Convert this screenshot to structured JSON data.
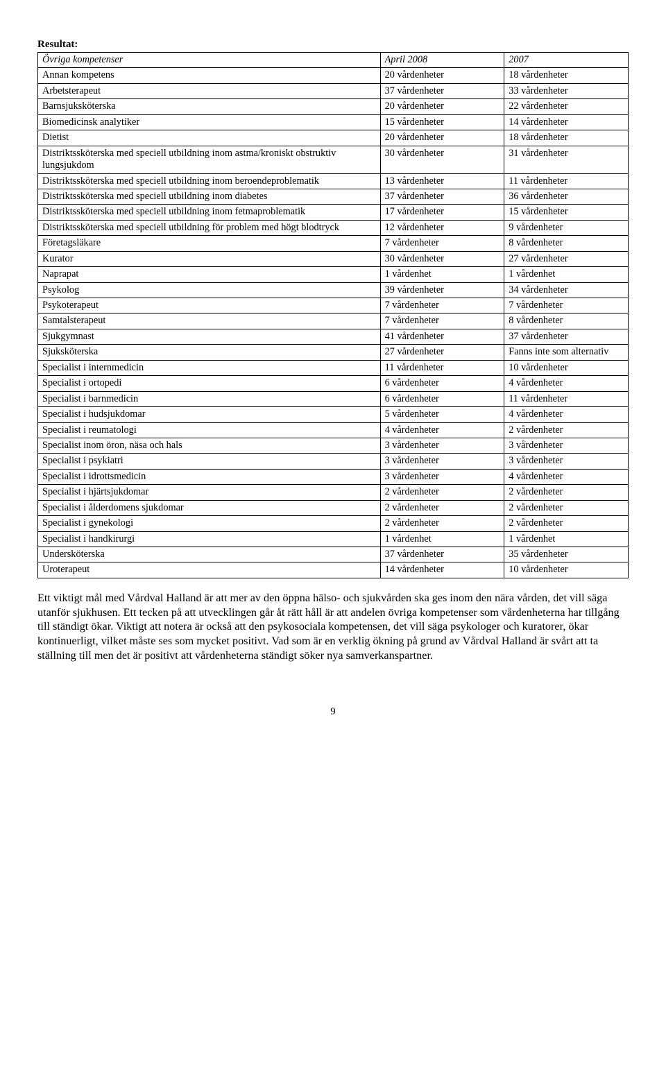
{
  "heading": "Resultat:",
  "table": {
    "header": {
      "c0": "Övriga kompetenser",
      "c1": "April 2008",
      "c2": "2007"
    },
    "rows": [
      {
        "c0": "Annan kompetens",
        "c1": "20 vårdenheter",
        "c2": "18 vårdenheter"
      },
      {
        "c0": "Arbetsterapeut",
        "c1": "37 vårdenheter",
        "c2": "33 vårdenheter"
      },
      {
        "c0": "Barnsjuksköterska",
        "c1": "20 vårdenheter",
        "c2": "22 vårdenheter"
      },
      {
        "c0": "Biomedicinsk analytiker",
        "c1": "15 vårdenheter",
        "c2": "14 vårdenheter"
      },
      {
        "c0": "Dietist",
        "c1": "20 vårdenheter",
        "c2": "18 vårdenheter"
      },
      {
        "c0": "Distriktssköterska med speciell utbildning inom astma/kroniskt obstruktiv lungsjukdom",
        "c1": "30 vårdenheter",
        "c2": "31 vårdenheter"
      },
      {
        "c0": "Distriktssköterska med speciell utbildning inom beroendeproblematik",
        "c1": "13 vårdenheter",
        "c2": "11 vårdenheter"
      },
      {
        "c0": "Distriktssköterska med speciell utbildning inom diabetes",
        "c1": "37 vårdenheter",
        "c2": "36 vårdenheter"
      },
      {
        "c0": "Distriktssköterska med speciell utbildning inom fetmaproblematik",
        "c1": "17 vårdenheter",
        "c2": "15 vårdenheter"
      },
      {
        "c0": "Distriktssköterska med speciell utbildning för problem med högt blodtryck",
        "c1": "12 vårdenheter",
        "c2": "9 vårdenheter"
      },
      {
        "c0": "Företagsläkare",
        "c1": "7 vårdenheter",
        "c2": "8 vårdenheter"
      },
      {
        "c0": "Kurator",
        "c1": "30 vårdenheter",
        "c2": "27 vårdenheter"
      },
      {
        "c0": "Naprapat",
        "c1": "1 vårdenhet",
        "c2": "1 vårdenhet"
      },
      {
        "c0": "Psykolog",
        "c1": "39 vårdenheter",
        "c2": "34 vårdenheter"
      },
      {
        "c0": "Psykoterapeut",
        "c1": "7 vårdenheter",
        "c2": "7 vårdenheter"
      },
      {
        "c0": "Samtalsterapeut",
        "c1": "7 vårdenheter",
        "c2": "8 vårdenheter"
      },
      {
        "c0": "Sjukgymnast",
        "c1": "41 vårdenheter",
        "c2": "37 vårdenheter"
      },
      {
        "c0": "Sjuksköterska",
        "c1": "27 vårdenheter",
        "c2": "Fanns inte som alternativ"
      },
      {
        "c0": "Specialist i internmedicin",
        "c1": "11 vårdenheter",
        "c2": "10 vårdenheter"
      },
      {
        "c0": "Specialist i ortopedi",
        "c1": "6 vårdenheter",
        "c2": "4 vårdenheter"
      },
      {
        "c0": "Specialist i barnmedicin",
        "c1": "6 vårdenheter",
        "c2": "11 vårdenheter"
      },
      {
        "c0": "Specialist i hudsjukdomar",
        "c1": "5 vårdenheter",
        "c2": "4 vårdenheter"
      },
      {
        "c0": "Specialist i reumatologi",
        "c1": "4 vårdenheter",
        "c2": "2 vårdenheter"
      },
      {
        "c0": "Specialist inom öron, näsa och hals",
        "c1": "3 vårdenheter",
        "c2": "3 vårdenheter"
      },
      {
        "c0": "Specialist i psykiatri",
        "c1": "3 vårdenheter",
        "c2": "3 vårdenheter"
      },
      {
        "c0": "Specialist i idrottsmedicin",
        "c1": "3 vårdenheter",
        "c2": "4 vårdenheter"
      },
      {
        "c0": "Specialist i hjärtsjukdomar",
        "c1": "2 vårdenheter",
        "c2": "2 vårdenheter"
      },
      {
        "c0": "Specialist i ålderdomens sjukdomar",
        "c1": "2 vårdenheter",
        "c2": "2 vårdenheter"
      },
      {
        "c0": "Specialist i gynekologi",
        "c1": "2 vårdenheter",
        "c2": "2 vårdenheter"
      },
      {
        "c0": "Specialist i handkirurgi",
        "c1": "1 vårdenhet",
        "c2": "1 vårdenhet"
      },
      {
        "c0": "Undersköterska",
        "c1": "37 vårdenheter",
        "c2": "35 vårdenheter"
      },
      {
        "c0": "Uroterapeut",
        "c1": "14 vårdenheter",
        "c2": "10 vårdenheter"
      }
    ]
  },
  "paragraph": "Ett viktigt mål med Vårdval Halland är att mer av den öppna hälso- och sjukvården ska ges inom den nära vården, det vill säga utanför sjukhusen. Ett tecken på att utvecklingen går åt rätt håll är att andelen övriga kompetenser som vårdenheterna har tillgång till ständigt ökar. Viktigt att notera är också att den psykosociala kompetensen, det vill säga psykologer och kuratorer, ökar kontinuerligt, vilket måste ses som mycket positivt. Vad som är en verklig ökning på grund av Vårdval Halland är svårt att ta ställning till men det är positivt att vårdenheterna ständigt söker nya samverkanspartner.",
  "page_number": "9"
}
